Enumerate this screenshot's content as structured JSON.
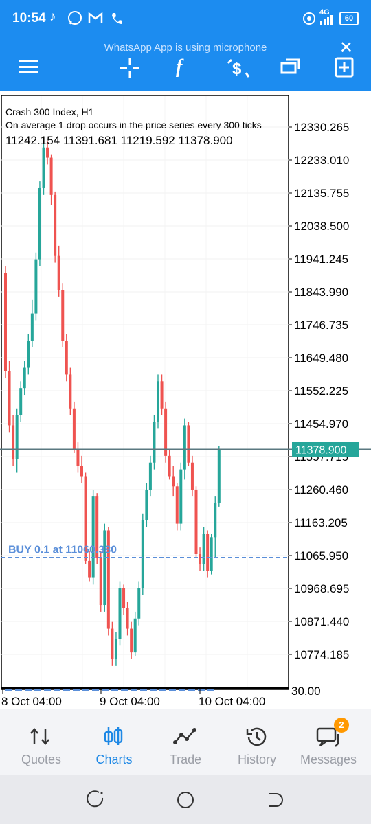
{
  "status_bar": {
    "time": "10:54",
    "left_icons": [
      "tiktok-icon",
      "whatsapp-icon",
      "gmail-icon",
      "phone-icon"
    ],
    "right_icons": [
      "hotspot-icon",
      "signal-icon",
      "battery-icon"
    ],
    "network": "4G",
    "battery": "60"
  },
  "notice": {
    "text": "WhatsApp App is using microphone"
  },
  "toolbar": {
    "icons": [
      "menu-icon",
      "crosshair-icon",
      "indicators-icon",
      "new-order-icon",
      "windows-icon",
      "add-chart-icon"
    ],
    "function_glyph": "f"
  },
  "chart_info": {
    "symbol": "Crash 300 Index, H1",
    "description": "On average 1 drop occurs in the price series every 300 ticks",
    "ohlc": "11242.154 11391.681 11219.592 11378.900"
  },
  "price_axis": [
    "12330.265",
    "12233.010",
    "12135.755",
    "12038.500",
    "11941.245",
    "11843.990",
    "11746.735",
    "11649.480",
    "11552.225",
    "11454.970",
    "11357.715",
    "11260.460",
    "11163.205",
    "11065.950",
    "10968.695",
    "10871.440",
    "10774.185"
  ],
  "bottom_axis_label": "30.00",
  "current_price": "11378.900",
  "order_line": {
    "label": "BUY 0.1 at 11060.380",
    "price": 11060.38
  },
  "time_axis": [
    "8 Oct 04:00",
    "9 Oct 04:00",
    "10 Oct 04:00"
  ],
  "colors": {
    "bull": "#26a69a",
    "bear": "#ef5350",
    "accent": "#1c8cf0",
    "order": "#5b8fd9"
  },
  "chart_data": {
    "type": "candlestick",
    "symbol": "Crash 300 Index",
    "timeframe": "H1",
    "ylim": [
      10700,
      12380
    ],
    "candles": [
      {
        "o": 11900,
        "h": 11920,
        "l": 11590,
        "c": 11610
      },
      {
        "o": 11610,
        "h": 11640,
        "l": 11430,
        "c": 11450
      },
      {
        "o": 11450,
        "h": 11480,
        "l": 11330,
        "c": 11350
      },
      {
        "o": 11350,
        "h": 11500,
        "l": 11310,
        "c": 11480
      },
      {
        "o": 11480,
        "h": 11580,
        "l": 11460,
        "c": 11560
      },
      {
        "o": 11560,
        "h": 11640,
        "l": 11540,
        "c": 11620
      },
      {
        "o": 11620,
        "h": 11720,
        "l": 11600,
        "c": 11700
      },
      {
        "o": 11700,
        "h": 11820,
        "l": 11680,
        "c": 11780
      },
      {
        "o": 11780,
        "h": 11960,
        "l": 11760,
        "c": 11940
      },
      {
        "o": 11940,
        "h": 12170,
        "l": 11920,
        "c": 12150
      },
      {
        "o": 12150,
        "h": 12290,
        "l": 12130,
        "c": 12270
      },
      {
        "o": 12270,
        "h": 12290,
        "l": 12220,
        "c": 12240
      },
      {
        "o": 12240,
        "h": 12250,
        "l": 12100,
        "c": 12130
      },
      {
        "o": 12130,
        "h": 12140,
        "l": 11930,
        "c": 11950
      },
      {
        "o": 11950,
        "h": 11980,
        "l": 11830,
        "c": 11850
      },
      {
        "o": 11850,
        "h": 11870,
        "l": 11680,
        "c": 11700
      },
      {
        "o": 11700,
        "h": 11720,
        "l": 11580,
        "c": 11600
      },
      {
        "o": 11600,
        "h": 11620,
        "l": 11480,
        "c": 11500
      },
      {
        "o": 11500,
        "h": 11520,
        "l": 11370,
        "c": 11380
      },
      {
        "o": 11380,
        "h": 11400,
        "l": 11310,
        "c": 11330
      },
      {
        "o": 11330,
        "h": 11360,
        "l": 11280,
        "c": 11300
      },
      {
        "o": 11300,
        "h": 11310,
        "l": 11040,
        "c": 11050
      },
      {
        "o": 11050,
        "h": 11080,
        "l": 10990,
        "c": 11000
      },
      {
        "o": 11000,
        "h": 11260,
        "l": 10980,
        "c": 11240
      },
      {
        "o": 11240,
        "h": 11250,
        "l": 11040,
        "c": 11060
      },
      {
        "o": 11060,
        "h": 11080,
        "l": 10900,
        "c": 10920
      },
      {
        "o": 10920,
        "h": 11160,
        "l": 10900,
        "c": 11140
      },
      {
        "o": 11140,
        "h": 11150,
        "l": 10830,
        "c": 10850
      },
      {
        "o": 10850,
        "h": 10870,
        "l": 10740,
        "c": 10760
      },
      {
        "o": 10760,
        "h": 10840,
        "l": 10740,
        "c": 10820
      },
      {
        "o": 10820,
        "h": 10990,
        "l": 10800,
        "c": 10970
      },
      {
        "o": 10970,
        "h": 10980,
        "l": 10890,
        "c": 10910
      },
      {
        "o": 10910,
        "h": 10930,
        "l": 10830,
        "c": 10850
      },
      {
        "o": 10850,
        "h": 10870,
        "l": 10760,
        "c": 10780
      },
      {
        "o": 10780,
        "h": 10900,
        "l": 10770,
        "c": 10880
      },
      {
        "o": 10880,
        "h": 10990,
        "l": 10860,
        "c": 10970
      },
      {
        "o": 10970,
        "h": 11190,
        "l": 10950,
        "c": 11170
      },
      {
        "o": 11170,
        "h": 11280,
        "l": 11150,
        "c": 11260
      },
      {
        "o": 11260,
        "h": 11360,
        "l": 11240,
        "c": 11340
      },
      {
        "o": 11340,
        "h": 11480,
        "l": 11320,
        "c": 11460
      },
      {
        "o": 11460,
        "h": 11600,
        "l": 11440,
        "c": 11580
      },
      {
        "o": 11580,
        "h": 11600,
        "l": 11480,
        "c": 11500
      },
      {
        "o": 11500,
        "h": 11520,
        "l": 11340,
        "c": 11360
      },
      {
        "o": 11360,
        "h": 11380,
        "l": 11290,
        "c": 11300
      },
      {
        "o": 11300,
        "h": 11330,
        "l": 11240,
        "c": 11270
      },
      {
        "o": 11270,
        "h": 11280,
        "l": 11140,
        "c": 11160
      },
      {
        "o": 11160,
        "h": 11340,
        "l": 11140,
        "c": 11320
      },
      {
        "o": 11320,
        "h": 11470,
        "l": 11290,
        "c": 11450
      },
      {
        "o": 11450,
        "h": 11460,
        "l": 11330,
        "c": 11340
      },
      {
        "o": 11340,
        "h": 11360,
        "l": 11240,
        "c": 11260
      },
      {
        "o": 11260,
        "h": 11270,
        "l": 11060,
        "c": 11070
      },
      {
        "o": 11070,
        "h": 11090,
        "l": 11020,
        "c": 11040
      },
      {
        "o": 11040,
        "h": 11150,
        "l": 11020,
        "c": 11130
      },
      {
        "o": 11130,
        "h": 11140,
        "l": 11000,
        "c": 11020
      },
      {
        "o": 11020,
        "h": 11130,
        "l": 11010,
        "c": 11120
      },
      {
        "o": 11120,
        "h": 11240,
        "l": 11060,
        "c": 11220
      },
      {
        "o": 11220,
        "h": 11390,
        "l": 11210,
        "c": 11380
      }
    ],
    "current_price": 11378.9
  },
  "bottom_nav": [
    {
      "label": "Quotes",
      "icon": "quotes-icon",
      "active": false
    },
    {
      "label": "Charts",
      "icon": "charts-icon",
      "active": true
    },
    {
      "label": "Trade",
      "icon": "trade-icon",
      "active": false
    },
    {
      "label": "History",
      "icon": "history-icon",
      "active": false
    },
    {
      "label": "Messages",
      "icon": "messages-icon",
      "active": false,
      "badge": "2"
    }
  ],
  "system_nav": [
    "recents-icon",
    "home-icon",
    "back-icon"
  ]
}
